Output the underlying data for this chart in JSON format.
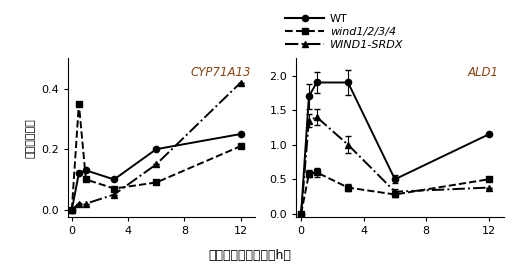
{
  "time": [
    0,
    0.5,
    1,
    3,
    6,
    12
  ],
  "CYP71A13": {
    "WT": {
      "y": [
        0.0,
        0.12,
        0.13,
        0.1,
        0.2,
        0.25
      ],
      "yerr": [
        0.0,
        0.0,
        0.0,
        0.0,
        0.0,
        0.0
      ]
    },
    "wind1234": {
      "y": [
        0.0,
        0.35,
        0.1,
        0.07,
        0.09,
        0.21
      ],
      "yerr": [
        0.0,
        0.0,
        0.0,
        0.0,
        0.0,
        0.0
      ]
    },
    "WIND1SRDX": {
      "y": [
        0.0,
        0.02,
        0.02,
        0.05,
        0.15,
        0.42
      ],
      "yerr": [
        0.0,
        0.0,
        0.0,
        0.0,
        0.0,
        0.0
      ]
    }
  },
  "ALD1": {
    "WT": {
      "y": [
        0.0,
        1.7,
        1.9,
        1.9,
        0.5,
        1.15
      ],
      "yerr": [
        0.0,
        0.18,
        0.15,
        0.18,
        0.06,
        0.0
      ]
    },
    "wind1234": {
      "y": [
        0.0,
        0.58,
        0.6,
        0.38,
        0.28,
        0.5
      ],
      "yerr": [
        0.0,
        0.05,
        0.06,
        0.05,
        0.04,
        0.0
      ]
    },
    "WIND1SRDX": {
      "y": [
        0.0,
        1.35,
        1.4,
        1.0,
        0.32,
        0.38
      ],
      "yerr": [
        0.0,
        0.1,
        0.12,
        0.12,
        0.04,
        0.0
      ]
    }
  },
  "xlabel": "傑害処理後の時間（h）",
  "ylabel": "遺伝子発現量",
  "title1": "CYP71A13",
  "title2": "ALD1",
  "xticks": [
    0,
    4,
    8,
    12
  ],
  "yticks1": [
    0,
    0.2,
    0.4
  ],
  "yticks2": [
    0,
    0.5,
    1.0,
    1.5,
    2.0
  ],
  "xlim": [
    -0.3,
    13.0
  ],
  "ylim1": [
    -0.025,
    0.5
  ],
  "ylim2": [
    -0.05,
    2.25
  ]
}
